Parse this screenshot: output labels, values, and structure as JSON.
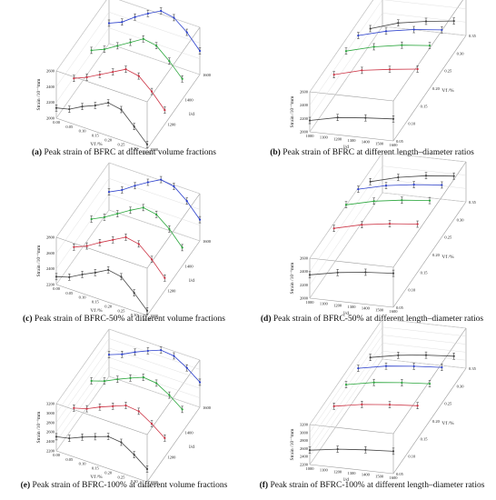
{
  "panels": [
    {
      "letter": "(a)",
      "text": " Peak strain of BFRC at different volume fractions"
    },
    {
      "letter": "(b)",
      "text": " Peak strain of BFRC at different length–diameter ratios"
    },
    {
      "letter": "(c)",
      "text": " Peak strain of BFRC-50% at different volume fractions"
    },
    {
      "letter": "(d)",
      "text": " Peak strain of BFRC-50% at different length–diameter ratios"
    },
    {
      "letter": "(e)",
      "text": " Peak strain of BFRC-100% at different volume fractions"
    },
    {
      "letter": "(f)",
      "text": " Peak strain of BFRC-100% at different length–diameter ratios"
    }
  ],
  "colors": {
    "series1": "#444444",
    "series2": "#cc3344",
    "series3": "#2aa63c",
    "series4": "#2a3fcc",
    "box": "#9a9a9a"
  },
  "chart_data": [
    {
      "type": "line",
      "view": "volume-fraction",
      "xlabel": "Vf /%",
      "ylabel": "l/d",
      "zlabel": "Strain /10⁻⁶mm",
      "x_ticks": [
        "0.00",
        "0.05",
        "0.10",
        "0.15",
        "0.20",
        "0.25",
        "0.30",
        "0.35"
      ],
      "y_ticks": [
        "1000",
        "1200",
        "1400",
        "1600"
      ],
      "z_ticks": [
        "2000",
        "2200",
        "2400",
        "2600"
      ],
      "x": [
        0.0,
        0.05,
        0.1,
        0.15,
        0.2,
        0.25,
        0.3,
        0.35
      ],
      "series": [
        {
          "ld": 1000,
          "values": [
            2130,
            2170,
            2260,
            2330,
            2420,
            2390,
            2230,
            2060
          ]
        },
        {
          "ld": 1200,
          "values": [
            2190,
            2260,
            2350,
            2440,
            2530,
            2500,
            2360,
            2180
          ]
        },
        {
          "ld": 1400,
          "values": [
            2230,
            2300,
            2400,
            2500,
            2600,
            2570,
            2430,
            2260
          ]
        },
        {
          "ld": 1600,
          "values": [
            2260,
            2330,
            2450,
            2550,
            2640,
            2610,
            2480,
            2300
          ]
        }
      ]
    },
    {
      "type": "line",
      "view": "length-diameter",
      "xlabel": "l/d",
      "ylabel": "Vf /%",
      "zlabel": "Strain /10⁻⁶mm",
      "x_ticks": [
        "1000",
        "1100",
        "1200",
        "1300",
        "1400",
        "1500",
        "1600"
      ],
      "y_ticks": [
        "0.05",
        "0.10",
        "0.15",
        "0.20",
        "0.25",
        "0.30",
        "0.35"
      ],
      "z_ticks": [
        "2000",
        "2200",
        "2400",
        "2600"
      ],
      "x": [
        1000,
        1200,
        1400,
        1600
      ],
      "series": [
        {
          "vf": 0.05,
          "values": [
            2170,
            2260,
            2300,
            2330
          ]
        },
        {
          "vf": 0.15,
          "values": [
            2330,
            2440,
            2500,
            2550
          ]
        },
        {
          "vf": 0.2,
          "values": [
            2420,
            2530,
            2600,
            2640
          ]
        },
        {
          "vf": 0.25,
          "values": [
            2390,
            2500,
            2570,
            2610
          ]
        },
        {
          "vf": 0.3,
          "values": [
            2230,
            2360,
            2430,
            2480
          ]
        }
      ]
    },
    {
      "type": "line",
      "view": "volume-fraction",
      "xlabel": "Vf /%",
      "ylabel": "l/d",
      "zlabel": "Strain /10⁻⁶mm",
      "x_ticks": [
        "0.00",
        "0.05",
        "0.10",
        "0.15",
        "0.20",
        "0.25",
        "0.30",
        "0.35"
      ],
      "y_ticks": [
        "1000",
        "1200",
        "1400",
        "1600"
      ],
      "z_ticks": [
        "2200",
        "2400",
        "2600",
        "2800"
      ],
      "x": [
        0.0,
        0.05,
        0.1,
        0.15,
        0.2,
        0.25,
        0.3,
        0.35
      ],
      "series": [
        {
          "ld": 1000,
          "values": [
            2300,
            2350,
            2440,
            2520,
            2610,
            2580,
            2430,
            2260
          ]
        },
        {
          "ld": 1200,
          "values": [
            2360,
            2430,
            2530,
            2620,
            2710,
            2680,
            2540,
            2360
          ]
        },
        {
          "ld": 1400,
          "values": [
            2400,
            2480,
            2580,
            2680,
            2770,
            2740,
            2610,
            2430
          ]
        },
        {
          "ld": 1600,
          "values": [
            2430,
            2510,
            2620,
            2720,
            2810,
            2780,
            2650,
            2470
          ]
        }
      ]
    },
    {
      "type": "line",
      "view": "length-diameter",
      "xlabel": "l/d",
      "ylabel": "Vf /%",
      "zlabel": "Strain /10⁻⁶mm",
      "x_ticks": [
        "1000",
        "1100",
        "1200",
        "1300",
        "1400",
        "1500",
        "1600"
      ],
      "y_ticks": [
        "0.05",
        "0.10",
        "0.15",
        "0.20",
        "0.25",
        "0.30",
        "0.35"
      ],
      "z_ticks": [
        "2000",
        "2200",
        "2400",
        "2600"
      ],
      "x": [
        1000,
        1200,
        1400,
        1600
      ],
      "series": [
        {
          "vf": 0.05,
          "values": [
            2350,
            2430,
            2480,
            2510
          ]
        },
        {
          "vf": 0.15,
          "values": [
            2520,
            2620,
            2680,
            2720
          ]
        },
        {
          "vf": 0.2,
          "values": [
            2610,
            2710,
            2770,
            2810
          ]
        },
        {
          "vf": 0.25,
          "values": [
            2580,
            2680,
            2740,
            2780
          ]
        },
        {
          "vf": 0.3,
          "values": [
            2430,
            2540,
            2610,
            2650
          ]
        }
      ]
    },
    {
      "type": "line",
      "view": "volume-fraction",
      "xlabel": "Vf /%",
      "ylabel": "l/d",
      "zlabel": "Strain /10⁻⁶mm",
      "x_ticks": [
        "0.00",
        "0.05",
        "0.10",
        "0.15",
        "0.20",
        "0.25",
        "0.30",
        "0.35"
      ],
      "y_ticks": [
        "1000",
        "1200",
        "1400",
        "1600"
      ],
      "z_ticks": [
        "2200",
        "2400",
        "2600",
        "2800",
        "3000",
        "3200"
      ],
      "x": [
        0.0,
        0.05,
        0.1,
        0.15,
        0.2,
        0.25,
        0.3,
        0.35
      ],
      "series": [
        {
          "ld": 1000,
          "values": [
            2500,
            2560,
            2680,
            2780,
            2880,
            2850,
            2680,
            2470
          ]
        },
        {
          "ld": 1200,
          "values": [
            2580,
            2660,
            2790,
            2900,
            3010,
            2980,
            2810,
            2600
          ]
        },
        {
          "ld": 1400,
          "values": [
            2630,
            2720,
            2850,
            2970,
            3080,
            3050,
            2890,
            2680
          ]
        },
        {
          "ld": 1600,
          "values": [
            2660,
            2760,
            2900,
            3020,
            3130,
            3100,
            2940,
            2730
          ]
        }
      ]
    },
    {
      "type": "line",
      "view": "length-diameter",
      "xlabel": "l/d",
      "ylabel": "Vf /%",
      "zlabel": "Strain /10⁻⁶mm",
      "x_ticks": [
        "1000",
        "1100",
        "1200",
        "1300",
        "1400",
        "1500",
        "1600"
      ],
      "y_ticks": [
        "0.05",
        "0.10",
        "0.15",
        "0.20",
        "0.25",
        "0.30",
        "0.35"
      ],
      "z_ticks": [
        "2200",
        "2400",
        "2600",
        "2800",
        "3000",
        "3200"
      ],
      "x": [
        1000,
        1200,
        1400,
        1600
      ],
      "series": [
        {
          "vf": 0.05,
          "values": [
            2560,
            2660,
            2720,
            2760
          ]
        },
        {
          "vf": 0.15,
          "values": [
            2780,
            2900,
            2970,
            3020
          ]
        },
        {
          "vf": 0.2,
          "values": [
            2880,
            3010,
            3080,
            3130
          ]
        },
        {
          "vf": 0.25,
          "values": [
            2850,
            2980,
            3050,
            3100
          ]
        },
        {
          "vf": 0.3,
          "values": [
            2680,
            2810,
            2890,
            2940
          ]
        }
      ]
    }
  ]
}
